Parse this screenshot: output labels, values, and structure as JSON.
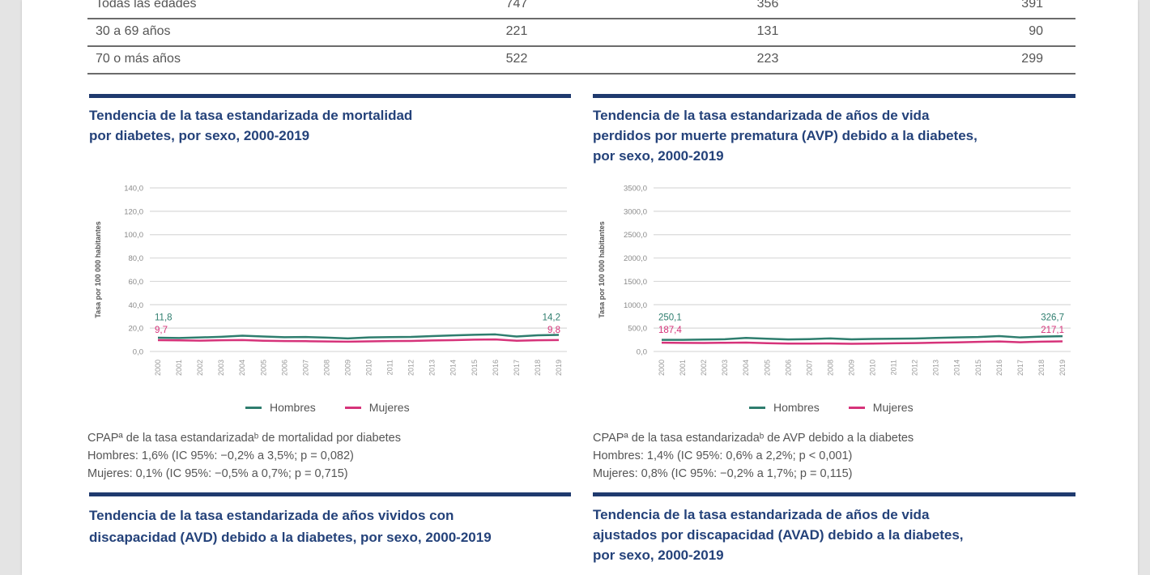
{
  "table": {
    "rows": [
      {
        "label": "Todas las edades",
        "total": "747",
        "hombres": "356",
        "mujeres": "391"
      },
      {
        "label": "30 a 69 años",
        "total": "221",
        "hombres": "131",
        "mujeres": "90"
      },
      {
        "label": "70 o más años",
        "total": "522",
        "hombres": "223",
        "mujeres": "299"
      }
    ]
  },
  "colors": {
    "hombres": "#2e7d6e",
    "mujeres": "#d6337a",
    "title": "#24427a",
    "rule": "#1f3a6e"
  },
  "sections": {
    "mortality": {
      "title_line1": "Tendencia de la tasa estandarizada de mortalidad",
      "title_line2": "por diabetes, por sexo, 2000-2019",
      "ylabel": "Tasa por 100 000 habitantes",
      "legend": {
        "hombres": "Hombres",
        "mujeres": "Mujeres"
      },
      "note": {
        "line1": "CPAPª de la tasa estandarizadaᵇ de mortalidad por diabetes",
        "line2": "Hombres: 1,6% (IC 95%: −0,2% a 3,5%; p = 0,082)",
        "line3": "Mujeres:  0,1% (IC 95%: −0,5% a 0,7%; p = 0,715)"
      }
    },
    "avp": {
      "title_line1": "Tendencia de la tasa estandarizada de años de vida",
      "title_line2": "perdidos por muerte prematura (AVP) debido a la diabetes,",
      "title_line3": "por sexo, 2000-2019",
      "ylabel": "Tasa por 100 000 habitantes",
      "legend": {
        "hombres": "Hombres",
        "mujeres": "Mujeres"
      },
      "note": {
        "line1": "CPAPª de la tasa estandarizadaᵇ de AVP debido a la diabetes",
        "line2": "Hombres:  1,4% (IC 95%: 0,6% a 2,2%; p < 0,001)",
        "line3": "Mujeres:    0,8% (IC 95%: −0,2% a 1,7%; p = 0,115)"
      }
    },
    "avd": {
      "title_line1": "Tendencia de la tasa estandarizada de años vividos con",
      "title_line2": "discapacidad (AVD) debido a la diabetes, por sexo, 2000-2019"
    },
    "avad": {
      "title_line1": "Tendencia de la tasa estandarizada de años de vida",
      "title_line2": "ajustados por discapacidad (AVAD) debido a la diabetes,",
      "title_line3": "por sexo, 2000-2019"
    }
  },
  "chart_data": [
    {
      "type": "line",
      "title": "Tendencia de la tasa estandarizada de mortalidad por diabetes, por sexo, 2000-2019",
      "xlabel": "",
      "ylabel": "Tasa por 100 000 habitantes",
      "ylim": [
        0,
        140
      ],
      "yticks": [
        "0,0",
        "20,0",
        "40,0",
        "60,0",
        "80,0",
        "100,0",
        "120,0",
        "140,0"
      ],
      "x": [
        "2000",
        "2001",
        "2002",
        "2003",
        "2004",
        "2005",
        "2006",
        "2007",
        "2008",
        "2009",
        "2010",
        "2011",
        "2012",
        "2013",
        "2014",
        "2015",
        "2016",
        "2017",
        "2018",
        "2019"
      ],
      "series": [
        {
          "name": "Hombres",
          "color": "#2e7d6e",
          "values": [
            11.8,
            11.5,
            12.0,
            12.6,
            13.5,
            12.8,
            12.2,
            12.4,
            11.9,
            11.2,
            12.0,
            12.3,
            12.5,
            13.2,
            13.8,
            14.3,
            14.6,
            12.8,
            13.9,
            14.2
          ]
        },
        {
          "name": "Mujeres",
          "color": "#d6337a",
          "values": [
            9.7,
            9.5,
            9.3,
            9.6,
            9.8,
            9.2,
            8.9,
            8.8,
            8.6,
            8.4,
            8.7,
            8.9,
            9.0,
            9.4,
            9.7,
            10.1,
            10.3,
            9.2,
            9.6,
            9.8
          ]
        }
      ],
      "annotations": [
        {
          "series": "Hombres",
          "x": "2000",
          "label": "11,8"
        },
        {
          "series": "Mujeres",
          "x": "2000",
          "label": "9,7"
        },
        {
          "series": "Hombres",
          "x": "2019",
          "label": "14,2"
        },
        {
          "series": "Mujeres",
          "x": "2019",
          "label": "9,8"
        }
      ],
      "grid": true,
      "legend_position": "bottom"
    },
    {
      "type": "line",
      "title": "Tendencia de la tasa estandarizada de años de vida perdidos por muerte prematura (AVP) debido a la diabetes, por sexo, 2000-2019",
      "xlabel": "",
      "ylabel": "Tasa por 100 000 habitantes",
      "ylim": [
        0,
        3500
      ],
      "yticks": [
        "0,0",
        "500,0",
        "1000,0",
        "1500,0",
        "2000,0",
        "2500,0",
        "3000,0",
        "3500,0"
      ],
      "x": [
        "2000",
        "2001",
        "2002",
        "2003",
        "2004",
        "2005",
        "2006",
        "2007",
        "2008",
        "2009",
        "2010",
        "2011",
        "2012",
        "2013",
        "2014",
        "2015",
        "2016",
        "2017",
        "2018",
        "2019"
      ],
      "series": [
        {
          "name": "Hombres",
          "color": "#2e7d6e",
          "values": [
            250.1,
            248.0,
            255.0,
            262.0,
            290.0,
            272.0,
            258.0,
            265.0,
            280.0,
            260.0,
            268.0,
            272.0,
            278.0,
            290.0,
            300.0,
            310.0,
            330.0,
            300.0,
            318.0,
            326.7
          ]
        },
        {
          "name": "Mujeres",
          "color": "#d6337a",
          "values": [
            187.4,
            185.0,
            183.0,
            186.0,
            190.0,
            178.0,
            170.0,
            168.0,
            172.0,
            165.0,
            170.0,
            176.0,
            180.0,
            188.0,
            195.0,
            205.0,
            215.0,
            198.0,
            210.0,
            217.1
          ]
        }
      ],
      "annotations": [
        {
          "series": "Hombres",
          "x": "2000",
          "label": "250,1"
        },
        {
          "series": "Mujeres",
          "x": "2000",
          "label": "187,4"
        },
        {
          "series": "Hombres",
          "x": "2019",
          "label": "326,7"
        },
        {
          "series": "Mujeres",
          "x": "2019",
          "label": "217,1"
        }
      ],
      "grid": true,
      "legend_position": "bottom"
    }
  ]
}
